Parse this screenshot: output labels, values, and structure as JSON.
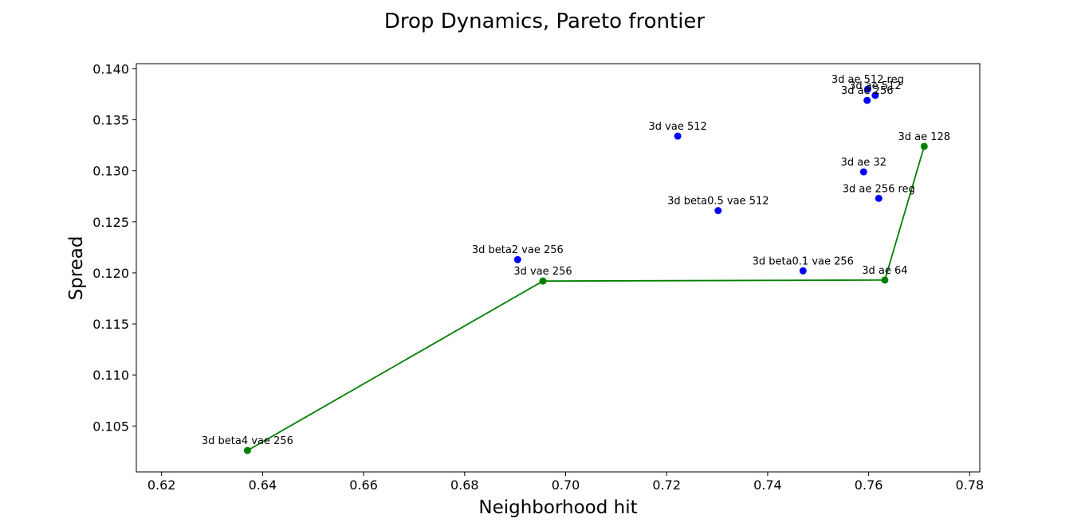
{
  "chart_data": {
    "type": "scatter",
    "title": "Drop Dynamics, Pareto frontier",
    "xlabel": "Neighborhood hit",
    "ylabel": "Spread",
    "xlim": [
      0.615,
      0.782
    ],
    "ylim": [
      0.1005,
      0.1405
    ],
    "xticks": [
      "0.62",
      "0.64",
      "0.66",
      "0.68",
      "0.70",
      "0.72",
      "0.74",
      "0.76",
      "0.78"
    ],
    "yticks": [
      "0.105",
      "0.110",
      "0.115",
      "0.120",
      "0.125",
      "0.130",
      "0.135",
      "0.140"
    ],
    "grid": false,
    "colors": {
      "dominated": "#0000ff",
      "frontier": "#008000"
    },
    "points": [
      {
        "label": "3d beta4 vae 256",
        "x": 0.637,
        "y": 0.1026,
        "frontier": true
      },
      {
        "label": "3d vae 256",
        "x": 0.6955,
        "y": 0.1192,
        "frontier": true
      },
      {
        "label": "3d ae 64",
        "x": 0.7632,
        "y": 0.1193,
        "frontier": true
      },
      {
        "label": "3d ae 128",
        "x": 0.771,
        "y": 0.1324,
        "frontier": true
      },
      {
        "label": "3d beta2 vae 256",
        "x": 0.6905,
        "y": 0.1213,
        "frontier": false
      },
      {
        "label": "3d beta0.5 vae 512",
        "x": 0.7302,
        "y": 0.1261,
        "frontier": false
      },
      {
        "label": "3d vae 512",
        "x": 0.7222,
        "y": 0.1334,
        "frontier": false
      },
      {
        "label": "3d beta0.1 vae 256",
        "x": 0.747,
        "y": 0.1202,
        "frontier": false
      },
      {
        "label": "3d ae 32",
        "x": 0.759,
        "y": 0.1299,
        "frontier": false
      },
      {
        "label": "3d ae 256 reg",
        "x": 0.762,
        "y": 0.1273,
        "frontier": false
      },
      {
        "label": "3d ae 256",
        "x": 0.7597,
        "y": 0.1369,
        "frontier": false
      },
      {
        "label": "3d ae 512",
        "x": 0.7613,
        "y": 0.1374,
        "frontier": false
      },
      {
        "label": "3d ae 512 reg",
        "x": 0.7598,
        "y": 0.138,
        "frontier": false
      }
    ]
  }
}
